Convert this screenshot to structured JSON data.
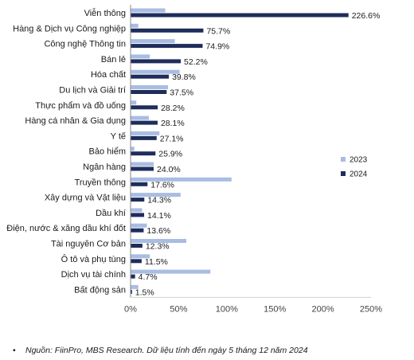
{
  "chart_data": {
    "type": "bar",
    "orientation": "horizontal",
    "categories": [
      "Viễn thông",
      "Hàng & Dịch vụ Công nghiệp",
      "Công nghệ Thông tin",
      "Bán lẻ",
      "Hóa chất",
      "Du lịch và Giải trí",
      "Thực phẩm và đồ uống",
      "Hàng cá nhân & Gia dụng",
      "Y tế",
      "Bảo hiểm",
      "Ngân hàng",
      "Truyền thông",
      "Xây dựng và Vật liệu",
      "Dầu khí",
      "Điện, nước & xăng dầu khí đốt",
      "Tài nguyên Cơ bản",
      "Ô tô và phụ tùng",
      "Dịch vụ tài chính",
      "Bất động sản"
    ],
    "series": [
      {
        "name": "2023",
        "color": "#a9bde3",
        "values": [
          36,
          8,
          46,
          20,
          51,
          39,
          6,
          19,
          30,
          4,
          24,
          105,
          52,
          12,
          17,
          58,
          20,
          83,
          8
        ]
      },
      {
        "name": "2024",
        "color": "#1f2d5c",
        "values": [
          226.6,
          75.7,
          74.9,
          52.2,
          39.8,
          37.5,
          28.2,
          28.1,
          27.1,
          25.9,
          24.0,
          17.6,
          14.3,
          14.1,
          13.6,
          12.3,
          11.5,
          4.7,
          1.5
        ]
      }
    ],
    "data_labels": [
      "226.6%",
      "75.7%",
      "74.9%",
      "52.2%",
      "39.8%",
      "37.5%",
      "28.2%",
      "28.1%",
      "27.1%",
      "25.9%",
      "24.0%",
      "17.6%",
      "14.3%",
      "14.1%",
      "13.6%",
      "12.3%",
      "11.5%",
      "4.7%",
      "1.5%"
    ],
    "xlim": [
      0,
      250
    ],
    "x_ticks": [
      0,
      50,
      100,
      150,
      200,
      250
    ],
    "x_tick_labels": [
      "0%",
      "50%",
      "100%",
      "150%",
      "200%",
      "250%"
    ],
    "legend_position": "right",
    "grid": false,
    "title": "",
    "xlabel": "",
    "ylabel": ""
  },
  "source": {
    "bullet": "•",
    "text": "Nguồn: FiinPro, MBS Research. Dữ liệu tính đến ngày 5 tháng 12 năm 2024"
  }
}
